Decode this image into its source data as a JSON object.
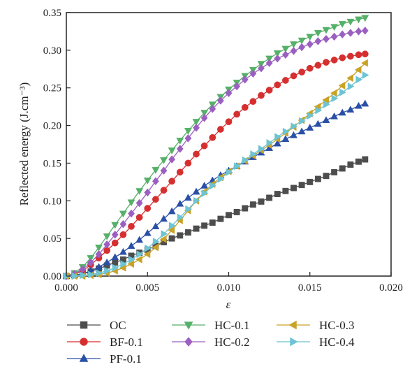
{
  "chart_data": {
    "type": "line",
    "xlabel": "ε",
    "ylabel": "Reflected energy (J.cm⁻³)",
    "xlim": [
      0,
      0.02
    ],
    "ylim": [
      0,
      0.35
    ],
    "x_ticks": [
      "0.000",
      "0.005",
      "0.010",
      "0.015",
      "0.020"
    ],
    "y_ticks": [
      "0.00",
      "0.05",
      "0.10",
      "0.15",
      "0.20",
      "0.25",
      "0.30",
      "0.35"
    ],
    "x_tick_values": [
      0,
      0.005,
      0.01,
      0.015,
      0.02
    ],
    "y_tick_values": [
      0,
      0.05,
      0.1,
      0.15,
      0.2,
      0.25,
      0.3,
      0.35
    ],
    "grid": false,
    "legend_position": "bottom",
    "series": [
      {
        "name": "OC",
        "color": "#4d4d4d",
        "marker": "square",
        "x": [
          0.0,
          0.0005,
          0.001,
          0.0015,
          0.002,
          0.0025,
          0.003,
          0.0035,
          0.004,
          0.0045,
          0.005,
          0.0055,
          0.006,
          0.0065,
          0.007,
          0.0075,
          0.008,
          0.0085,
          0.009,
          0.0095,
          0.01,
          0.0105,
          0.011,
          0.0115,
          0.012,
          0.0125,
          0.013,
          0.0135,
          0.014,
          0.0145,
          0.015,
          0.0155,
          0.016,
          0.0165,
          0.017,
          0.0175,
          0.018,
          0.0184
        ],
        "y": [
          0.0,
          0.001,
          0.003,
          0.006,
          0.01,
          0.014,
          0.018,
          0.022,
          0.027,
          0.031,
          0.035,
          0.04,
          0.045,
          0.05,
          0.054,
          0.058,
          0.063,
          0.067,
          0.071,
          0.076,
          0.081,
          0.085,
          0.09,
          0.095,
          0.099,
          0.104,
          0.109,
          0.113,
          0.117,
          0.121,
          0.125,
          0.129,
          0.133,
          0.138,
          0.143,
          0.148,
          0.152,
          0.155
        ]
      },
      {
        "name": "BF-0.1",
        "color": "#d62f2f",
        "marker": "circle",
        "x": [
          0.0,
          0.0005,
          0.001,
          0.0015,
          0.002,
          0.0025,
          0.003,
          0.0035,
          0.004,
          0.0045,
          0.005,
          0.0055,
          0.006,
          0.0065,
          0.007,
          0.0075,
          0.008,
          0.0085,
          0.009,
          0.0095,
          0.01,
          0.0105,
          0.011,
          0.0115,
          0.012,
          0.0125,
          0.013,
          0.0135,
          0.014,
          0.0145,
          0.015,
          0.0155,
          0.016,
          0.0165,
          0.017,
          0.0175,
          0.018,
          0.0184
        ],
        "y": [
          0.0,
          0.002,
          0.007,
          0.015,
          0.024,
          0.034,
          0.044,
          0.055,
          0.066,
          0.078,
          0.09,
          0.102,
          0.114,
          0.126,
          0.138,
          0.15,
          0.162,
          0.173,
          0.184,
          0.195,
          0.205,
          0.215,
          0.224,
          0.232,
          0.24,
          0.247,
          0.254,
          0.26,
          0.266,
          0.271,
          0.276,
          0.28,
          0.284,
          0.287,
          0.29,
          0.292,
          0.294,
          0.295
        ]
      },
      {
        "name": "PF-0.1",
        "color": "#2a4fa6",
        "marker": "triangle-up",
        "x": [
          0.0,
          0.0005,
          0.001,
          0.0015,
          0.002,
          0.0025,
          0.003,
          0.0035,
          0.004,
          0.0045,
          0.005,
          0.0055,
          0.006,
          0.0065,
          0.007,
          0.0075,
          0.008,
          0.0085,
          0.009,
          0.0095,
          0.01,
          0.0105,
          0.011,
          0.0115,
          0.012,
          0.0125,
          0.013,
          0.0135,
          0.014,
          0.0145,
          0.015,
          0.0155,
          0.016,
          0.0165,
          0.017,
          0.0175,
          0.018,
          0.0184
        ],
        "y": [
          0.0,
          0.001,
          0.003,
          0.007,
          0.012,
          0.018,
          0.025,
          0.032,
          0.04,
          0.048,
          0.057,
          0.066,
          0.076,
          0.086,
          0.096,
          0.104,
          0.112,
          0.12,
          0.127,
          0.134,
          0.14,
          0.146,
          0.152,
          0.158,
          0.164,
          0.17,
          0.176,
          0.182,
          0.187,
          0.192,
          0.197,
          0.202,
          0.207,
          0.212,
          0.217,
          0.221,
          0.226,
          0.229
        ]
      },
      {
        "name": "HC-0.1",
        "color": "#55b068",
        "marker": "triangle-down",
        "x": [
          0.0,
          0.0005,
          0.001,
          0.0015,
          0.002,
          0.0025,
          0.003,
          0.0035,
          0.004,
          0.0045,
          0.005,
          0.0055,
          0.006,
          0.0065,
          0.007,
          0.0075,
          0.008,
          0.0085,
          0.009,
          0.0095,
          0.01,
          0.0105,
          0.011,
          0.0115,
          0.012,
          0.0125,
          0.013,
          0.0135,
          0.014,
          0.0145,
          0.015,
          0.0155,
          0.016,
          0.0165,
          0.017,
          0.0175,
          0.018,
          0.0184
        ],
        "y": [
          0.0,
          0.004,
          0.012,
          0.024,
          0.038,
          0.053,
          0.068,
          0.083,
          0.098,
          0.113,
          0.127,
          0.141,
          0.154,
          0.167,
          0.18,
          0.193,
          0.205,
          0.217,
          0.228,
          0.238,
          0.248,
          0.257,
          0.266,
          0.274,
          0.282,
          0.289,
          0.296,
          0.302,
          0.308,
          0.313,
          0.318,
          0.323,
          0.327,
          0.331,
          0.335,
          0.338,
          0.341,
          0.343
        ]
      },
      {
        "name": "HC-0.2",
        "color": "#9b5fc0",
        "marker": "diamond",
        "x": [
          0.0,
          0.0005,
          0.001,
          0.0015,
          0.002,
          0.0025,
          0.003,
          0.0035,
          0.004,
          0.0045,
          0.005,
          0.0055,
          0.006,
          0.0065,
          0.007,
          0.0075,
          0.008,
          0.0085,
          0.009,
          0.0095,
          0.01,
          0.0105,
          0.011,
          0.0115,
          0.012,
          0.0125,
          0.013,
          0.0135,
          0.014,
          0.0145,
          0.015,
          0.0155,
          0.016,
          0.0165,
          0.017,
          0.0175,
          0.018,
          0.0184
        ],
        "y": [
          0.0,
          0.003,
          0.009,
          0.018,
          0.029,
          0.042,
          0.055,
          0.069,
          0.083,
          0.097,
          0.111,
          0.126,
          0.14,
          0.155,
          0.169,
          0.183,
          0.197,
          0.21,
          0.222,
          0.233,
          0.243,
          0.252,
          0.261,
          0.269,
          0.276,
          0.283,
          0.289,
          0.294,
          0.299,
          0.304,
          0.308,
          0.312,
          0.315,
          0.318,
          0.321,
          0.323,
          0.325,
          0.326
        ]
      },
      {
        "name": "HC-0.3",
        "color": "#c9a227",
        "marker": "triangle-left",
        "x": [
          0.0,
          0.0005,
          0.001,
          0.0015,
          0.002,
          0.0025,
          0.003,
          0.0035,
          0.004,
          0.0045,
          0.005,
          0.0055,
          0.006,
          0.0065,
          0.007,
          0.0075,
          0.008,
          0.0085,
          0.009,
          0.0095,
          0.01,
          0.0105,
          0.011,
          0.0115,
          0.012,
          0.0125,
          0.013,
          0.0135,
          0.014,
          0.0145,
          0.015,
          0.0155,
          0.016,
          0.0165,
          0.017,
          0.0175,
          0.018,
          0.0184
        ],
        "y": [
          0.0,
          0.0,
          0.0,
          0.001,
          0.002,
          0.004,
          0.007,
          0.011,
          0.016,
          0.022,
          0.029,
          0.038,
          0.049,
          0.061,
          0.074,
          0.087,
          0.1,
          0.112,
          0.122,
          0.131,
          0.139,
          0.146,
          0.153,
          0.16,
          0.167,
          0.174,
          0.182,
          0.19,
          0.198,
          0.207,
          0.216,
          0.225,
          0.234,
          0.243,
          0.253,
          0.263,
          0.274,
          0.283
        ]
      },
      {
        "name": "HC-0.4",
        "color": "#6cc4d4",
        "marker": "triangle-right",
        "x": [
          0.0,
          0.0005,
          0.001,
          0.0015,
          0.002,
          0.0025,
          0.003,
          0.0035,
          0.004,
          0.0045,
          0.005,
          0.0055,
          0.006,
          0.0065,
          0.007,
          0.0075,
          0.008,
          0.0085,
          0.009,
          0.0095,
          0.01,
          0.0105,
          0.011,
          0.0115,
          0.012,
          0.0125,
          0.013,
          0.0135,
          0.014,
          0.0145,
          0.015,
          0.0155,
          0.016,
          0.0165,
          0.017,
          0.0175,
          0.018,
          0.0184
        ],
        "y": [
          0.0,
          0.0,
          0.001,
          0.002,
          0.004,
          0.007,
          0.011,
          0.016,
          0.022,
          0.029,
          0.037,
          0.046,
          0.056,
          0.067,
          0.078,
          0.089,
          0.1,
          0.11,
          0.12,
          0.129,
          0.138,
          0.146,
          0.154,
          0.162,
          0.169,
          0.177,
          0.185,
          0.192,
          0.199,
          0.206,
          0.213,
          0.22,
          0.228,
          0.236,
          0.244,
          0.252,
          0.261,
          0.267
        ]
      }
    ]
  }
}
